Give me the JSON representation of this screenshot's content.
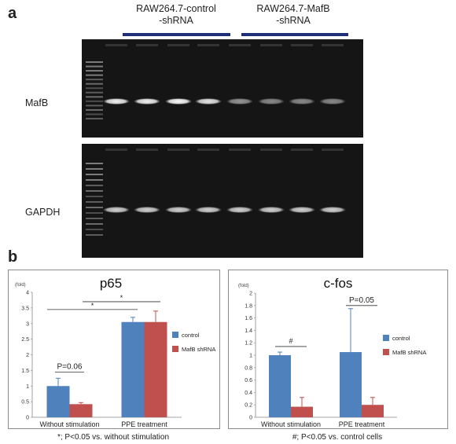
{
  "figure": {
    "panel_a_letter": "a",
    "panel_b_letter": "b",
    "groups": [
      {
        "label_line1": "RAW264.7-control",
        "label_line2": "-shRNA"
      },
      {
        "label_line1": "RAW264.7-MafB",
        "label_line2": "-shRNA"
      }
    ],
    "gel_rows": [
      {
        "label": "MafB",
        "band_intensity": [
          0.95,
          0.95,
          1.0,
          0.9,
          0.55,
          0.5,
          0.5,
          0.5
        ]
      },
      {
        "label": "GAPDH",
        "band_intensity": [
          0.8,
          0.8,
          0.8,
          0.8,
          0.8,
          0.8,
          0.8,
          0.8
        ]
      }
    ],
    "footnote_left": "*; P<0.05 vs. without stimulation",
    "footnote_right": "#; P<0.05 vs. control cells",
    "colors": {
      "control": "#4f81bd",
      "shrna": "#c0504d",
      "group_bar": "#1f2f7a"
    }
  },
  "chart_data": [
    {
      "type": "bar",
      "title": "p65",
      "ylabel": "(fold)",
      "ylim": [
        0,
        4
      ],
      "yticks": [
        "0",
        "0.5",
        "1",
        "1.5",
        "2",
        "2.5",
        "3",
        "3.5",
        "4"
      ],
      "categories": [
        "Without stimulation",
        "PPE treatment"
      ],
      "series": [
        {
          "name": "control",
          "values": [
            1.0,
            3.05
          ],
          "errors": [
            0.25,
            0.15
          ]
        },
        {
          "name": "MafB shRNA",
          "values": [
            0.42,
            3.05
          ],
          "errors": [
            0.05,
            0.35
          ]
        }
      ],
      "annotations": [
        "P=0.06",
        "*",
        "*"
      ]
    },
    {
      "type": "bar",
      "title": "c-fos",
      "ylabel": "(fold)",
      "ylim": [
        0,
        2
      ],
      "yticks": [
        "0",
        "0.2",
        "0.4",
        "0.6",
        "0.8",
        "1",
        "1.2",
        "1.4",
        "1.6",
        "1.8",
        "2"
      ],
      "categories": [
        "Without stimulation",
        "PPE treatment"
      ],
      "series": [
        {
          "name": "control",
          "values": [
            1.0,
            1.05
          ],
          "errors": [
            0.05,
            0.7
          ]
        },
        {
          "name": "MafB shRNA",
          "values": [
            0.17,
            0.2
          ],
          "errors": [
            0.15,
            0.12
          ]
        }
      ],
      "annotations": [
        "#",
        "P=0.05"
      ]
    }
  ]
}
